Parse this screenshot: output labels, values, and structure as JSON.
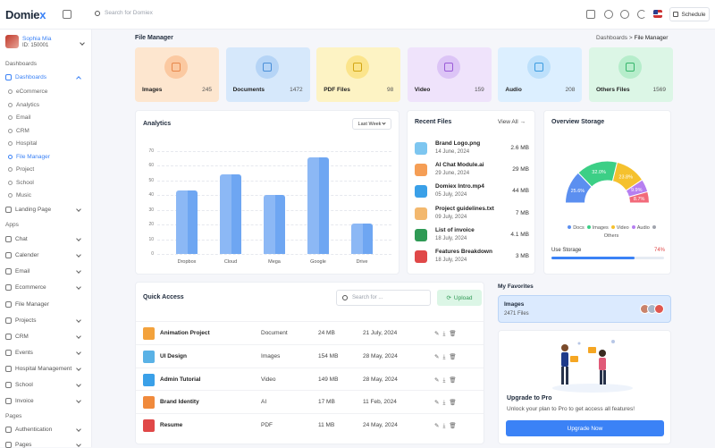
{
  "brand": {
    "name_a": "Domie",
    "name_b": "x"
  },
  "topbar": {
    "search_placeholder": "Search for Domiex",
    "schedule_label": "Schedule"
  },
  "user": {
    "name": "Sophia Mia",
    "id": "ID: 150001"
  },
  "sidebar": {
    "sections": [
      "Dashboards",
      "Apps",
      "Pages"
    ],
    "dashboards_label": "Dashboards",
    "dashboard_items": [
      "eCommerce",
      "Analytics",
      "Email",
      "CRM",
      "Hospital",
      "File Manager",
      "Project",
      "School",
      "Music"
    ],
    "landing": "Landing Page",
    "apps": [
      "Chat",
      "Calender",
      "Email",
      "Ecommerce",
      "File Manager",
      "Projects",
      "CRM",
      "Events",
      "Hospital Management",
      "School",
      "Invoice"
    ],
    "pages": [
      "Authentication",
      "Pages"
    ]
  },
  "page": {
    "title": "File Manager",
    "crumb_parent": "Dashboards",
    "crumb_sep": ">",
    "crumb_current": "File Manager"
  },
  "tiles": [
    {
      "label": "Images",
      "count": "245",
      "bg": "#fde6cf",
      "circ": "#fbc9a1",
      "ic": "#e8874a"
    },
    {
      "label": "Documents",
      "count": "1472",
      "bg": "#d6e8fb",
      "circ": "#b5d4f6",
      "ic": "#4a8fd8"
    },
    {
      "label": "PDF Files",
      "count": "98",
      "bg": "#fdf3c4",
      "circ": "#fbe48b",
      "ic": "#d2a614"
    },
    {
      "label": "Video",
      "count": "159",
      "bg": "#efe3fb",
      "circ": "#dcc4f6",
      "ic": "#9a5ad8"
    },
    {
      "label": "Audio",
      "count": "208",
      "bg": "#dcefff",
      "circ": "#bde0fb",
      "ic": "#3b9be0"
    },
    {
      "label": "Others Files",
      "count": "1569",
      "bg": "#dcf6e6",
      "circ": "#b6edcb",
      "ic": "#35b56b"
    }
  ],
  "analytics": {
    "title": "Analytics",
    "filter": "Last Week"
  },
  "chart_data": {
    "type": "bar",
    "categories": [
      "Dropbox",
      "Cloud",
      "Mega",
      "Google",
      "Drive"
    ],
    "values": [
      43,
      54,
      40,
      66,
      21
    ],
    "yticks": [
      "0",
      "10",
      "20",
      "30",
      "40",
      "50",
      "60",
      "70"
    ],
    "ylim": [
      0,
      70
    ],
    "grid": true
  },
  "recent": {
    "title": "Recent Files",
    "view_all": "View All",
    "files": [
      {
        "name": "Brand Logo.png",
        "date": "14 June, 2024",
        "size": "2.6 MB",
        "color": "#7dc6f0"
      },
      {
        "name": "AI Chat Module.ai",
        "date": "29 June, 2024",
        "size": "29 MB",
        "color": "#f59e55"
      },
      {
        "name": "Domiex Intro.mp4",
        "date": "05 July, 2024",
        "size": "44 MB",
        "color": "#3aa0e8"
      },
      {
        "name": "Project guidelines.txt",
        "date": "09 July, 2024",
        "size": "7 MB",
        "color": "#f3b86e"
      },
      {
        "name": "List of invoice",
        "date": "18 July, 2024",
        "size": "4.1 MB",
        "color": "#2f9a55"
      },
      {
        "name": "Features Breakdown",
        "date": "18 July, 2024",
        "size": "3 MB",
        "color": "#e04848"
      }
    ]
  },
  "storage": {
    "title": "Overview Storage",
    "segments": [
      {
        "label": "25.6%",
        "value": 25.6,
        "color": "#5b8ff0"
      },
      {
        "label": "32.0%",
        "value": 32.0,
        "color": "#3ccf86"
      },
      {
        "label": "23.8%",
        "value": 23.8,
        "color": "#f5c12e"
      },
      {
        "label": "9.9%",
        "value": 9.9,
        "color": "#b67ff0"
      },
      {
        "label": "8.7%",
        "value": 8.7,
        "color": "#f26a7a"
      }
    ],
    "legend": [
      "Docs",
      "Images",
      "Video",
      "Audio",
      "Others"
    ],
    "legend_colors": [
      "#5b8ff0",
      "#3ccf86",
      "#f5c12e",
      "#b67ff0",
      "#a0a4ad"
    ],
    "use_label": "Use Storage",
    "use_pct": "74%",
    "use_value": 0.74
  },
  "quick": {
    "title": "Quick Access",
    "search_placeholder": "Search for ...",
    "upload": "Upload",
    "rows": [
      {
        "name": "Animation Project",
        "type": "Document",
        "size": "24 MB",
        "date": "21 July, 2024",
        "color": "#f3a23c"
      },
      {
        "name": "UI Design",
        "type": "Images",
        "size": "154 MB",
        "date": "28 May, 2024",
        "color": "#5ab2e6"
      },
      {
        "name": "Admin Tutorial",
        "type": "Video",
        "size": "149 MB",
        "date": "28 May, 2024",
        "color": "#3aa0e8"
      },
      {
        "name": "Brand Identity",
        "type": "AI",
        "size": "17 MB",
        "date": "11 Feb, 2024",
        "color": "#f08a3c"
      },
      {
        "name": "Resume",
        "type": "PDF",
        "size": "11 MB",
        "date": "24 May, 2024",
        "color": "#e04848"
      }
    ]
  },
  "favorites": {
    "title": "My Favorites",
    "name": "Images",
    "count": "2471 Files"
  },
  "upgrade": {
    "title": "Upgrade to Pro",
    "text": "Unlock your plan to Pro to get access all features!",
    "button": "Upgrade Now"
  }
}
